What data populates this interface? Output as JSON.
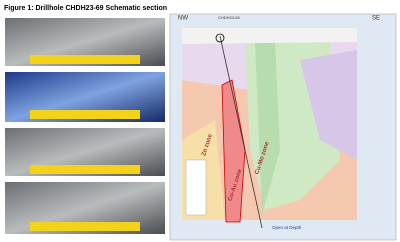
{
  "figure": {
    "title": "Figure 1: Drillhole CHDH23-69 Schematic section"
  },
  "section": {
    "left_label": "NW",
    "right_label": "SE",
    "drillhole": "CHDH23-69",
    "zones": [
      "Zn zone",
      "Cu-Au zone",
      "Cu-Mo zone"
    ],
    "note": "Open at Depth"
  }
}
